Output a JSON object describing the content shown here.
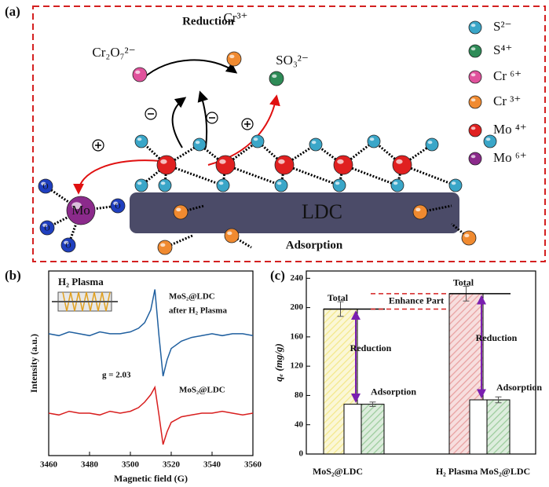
{
  "panel_a": {
    "label": "(a)",
    "title": "Reduction",
    "reactant": "Cr₂O₇²⁻",
    "product_cr": "Cr³⁺",
    "product_s": "SO₃²⁻",
    "support": "LDC",
    "process": "Adsorption",
    "mo_label": "Mo",
    "o_label": "O",
    "legend": [
      {
        "label": "S²⁻",
        "color": "#3aa6c8"
      },
      {
        "label": "S⁴⁺",
        "color": "#2e8b57"
      },
      {
        "label": "Cr ⁶⁺",
        "color": "#e0529c"
      },
      {
        "label": "Cr ³⁺",
        "color": "#f08a30"
      },
      {
        "label": "Mo ⁴⁺",
        "color": "#e02020"
      },
      {
        "label": "Mo ⁶⁺",
        "color": "#8b2a8b"
      }
    ]
  },
  "chart_data": [
    {
      "type": "line",
      "label": "(b)",
      "x_label": "Magnetic field (G)",
      "y_label": "Intensity (a.u.)",
      "x": [
        3460,
        3465,
        3470,
        3475,
        3480,
        3485,
        3490,
        3495,
        3500,
        3504,
        3507,
        3510,
        3512,
        3514,
        3516,
        3518,
        3520,
        3525,
        3530,
        3535,
        3540,
        3545,
        3550,
        3555,
        3560
      ],
      "series": [
        {
          "name": "MoS₂@LDC after H₂ Plasma",
          "color": "#1f5f9f",
          "values": [
            6.6,
            6.5,
            6.7,
            6.6,
            6.5,
            6.7,
            6.6,
            6.6,
            6.7,
            6.9,
            7.2,
            7.9,
            9.0,
            6.5,
            4.3,
            5.2,
            5.8,
            6.2,
            6.4,
            6.5,
            6.6,
            6.5,
            6.6,
            6.6,
            6.5
          ]
        },
        {
          "name": "MoS₂@LDC",
          "color": "#d81e1e",
          "values": [
            2.3,
            2.2,
            2.4,
            2.3,
            2.3,
            2.2,
            2.4,
            2.3,
            2.4,
            2.6,
            2.9,
            3.3,
            3.7,
            2.2,
            0.6,
            1.3,
            1.8,
            2.1,
            2.2,
            2.3,
            2.3,
            2.4,
            2.3,
            2.2,
            2.3
          ]
        }
      ],
      "xlim": [
        3460,
        3560
      ],
      "xticks": [
        3460,
        3480,
        3500,
        3520,
        3540,
        3560
      ],
      "ylim": [
        0,
        10
      ],
      "annotations": [
        "MoS₂@LDC",
        "after H₂ Plasma",
        "g = 2.03",
        "MoS₂@LDC",
        "H₂ Plasma"
      ]
    },
    {
      "type": "bar",
      "label": "(c)",
      "y_label": "qₑ (mg/g)",
      "categories": [
        "MoS₂@LDC",
        "H₂ Plasma MoS₂@LDC"
      ],
      "series": [
        {
          "name": "Total",
          "colors": [
            "#f3e88a",
            "#e8a0a0"
          ],
          "values": [
            198,
            219
          ],
          "errors": [
            10,
            10
          ]
        },
        {
          "name": "Adsorption",
          "colors": [
            "#9ccc9c",
            "#9ccc9c"
          ],
          "values": [
            68,
            74
          ],
          "errors": [
            3,
            4
          ]
        }
      ],
      "ylim": [
        0,
        250
      ],
      "yticks": [
        0,
        40,
        80,
        120,
        160,
        200,
        240
      ],
      "annotations": [
        "Reduction",
        "Enhance Part"
      ]
    }
  ]
}
